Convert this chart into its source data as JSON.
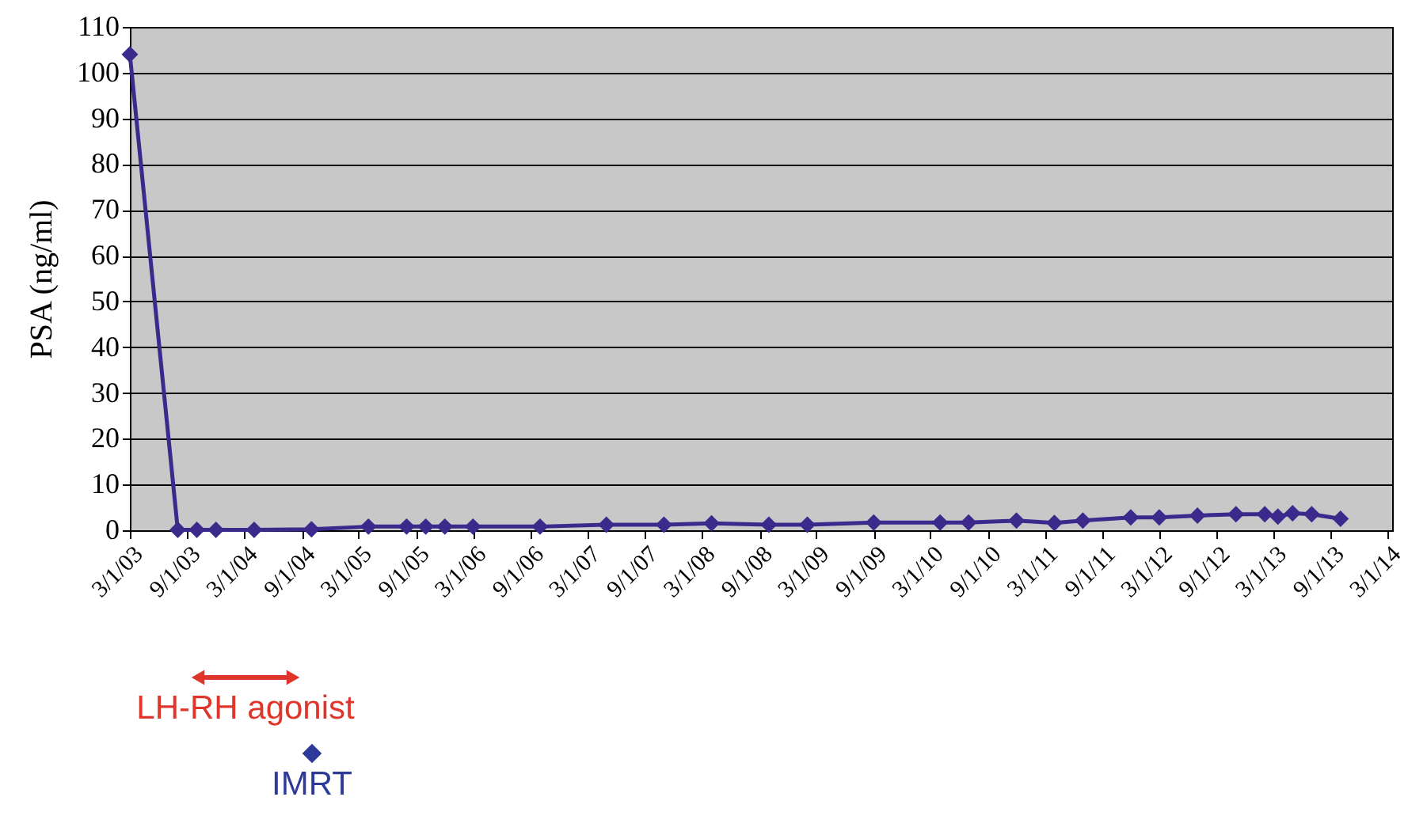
{
  "chart_data": {
    "type": "line",
    "ylabel": "PSA (ng/ml)",
    "x": [
      "2003-03-01",
      "2003-08-01",
      "2003-10-01",
      "2003-12-01",
      "2004-04-01",
      "2004-10-01",
      "2005-04-01",
      "2005-08-01",
      "2005-10-01",
      "2005-12-01",
      "2006-03-01",
      "2006-10-01",
      "2007-05-01",
      "2007-11-01",
      "2008-04-01",
      "2008-10-01",
      "2009-02-01",
      "2009-09-01",
      "2010-04-01",
      "2010-07-01",
      "2010-12-01",
      "2011-04-01",
      "2011-07-01",
      "2011-12-01",
      "2012-03-01",
      "2012-07-01",
      "2012-11-01",
      "2013-02-01",
      "2013-03-15",
      "2013-05-01",
      "2013-07-01",
      "2013-10-01"
    ],
    "series": [
      {
        "color": "#3b2a8c",
        "values": [
          104,
          0.1,
          0.1,
          0.1,
          0.1,
          0.2,
          0.8,
          0.8,
          0.8,
          0.8,
          0.8,
          0.8,
          1.2,
          1.2,
          1.5,
          1.2,
          1.2,
          1.7,
          1.7,
          1.7,
          2.1,
          1.6,
          2.1,
          2.8,
          2.8,
          3.2,
          3.5,
          3.5,
          3.0,
          3.7,
          3.5,
          2.5
        ]
      }
    ],
    "xlim": [
      "2003-03-01",
      "2014-03-15"
    ],
    "xticks": [
      {
        "value": "2003-03-01",
        "label": "3/1/03"
      },
      {
        "value": "2003-09-01",
        "label": "9/1/03"
      },
      {
        "value": "2004-03-01",
        "label": "3/1/04"
      },
      {
        "value": "2004-09-01",
        "label": "9/1/04"
      },
      {
        "value": "2005-03-01",
        "label": "3/1/05"
      },
      {
        "value": "2005-09-01",
        "label": "9/1/05"
      },
      {
        "value": "2006-03-01",
        "label": "3/1/06"
      },
      {
        "value": "2006-09-01",
        "label": "9/1/06"
      },
      {
        "value": "2007-03-01",
        "label": "3/1/07"
      },
      {
        "value": "2007-09-01",
        "label": "9/1/07"
      },
      {
        "value": "2008-03-01",
        "label": "3/1/08"
      },
      {
        "value": "2008-09-01",
        "label": "9/1/08"
      },
      {
        "value": "2009-03-01",
        "label": "3/1/09"
      },
      {
        "value": "2009-09-01",
        "label": "9/1/09"
      },
      {
        "value": "2010-03-01",
        "label": "3/1/10"
      },
      {
        "value": "2010-09-01",
        "label": "9/1/10"
      },
      {
        "value": "2011-03-01",
        "label": "3/1/11"
      },
      {
        "value": "2011-09-01",
        "label": "9/1/11"
      },
      {
        "value": "2012-03-01",
        "label": "3/1/12"
      },
      {
        "value": "2012-09-01",
        "label": "9/1/12"
      },
      {
        "value": "2013-03-01",
        "label": "3/1/13"
      },
      {
        "value": "2013-09-01",
        "label": "9/1/13"
      },
      {
        "value": "2014-03-01",
        "label": "3/1/14"
      }
    ],
    "ylim": [
      0,
      110
    ],
    "yticks": [
      0,
      10,
      20,
      30,
      40,
      50,
      60,
      70,
      80,
      90,
      100,
      110
    ],
    "grid": "y",
    "marker": "diamond",
    "line_style": "solid",
    "annotations": [
      "LH-RH agonist",
      "IMRT"
    ]
  }
}
